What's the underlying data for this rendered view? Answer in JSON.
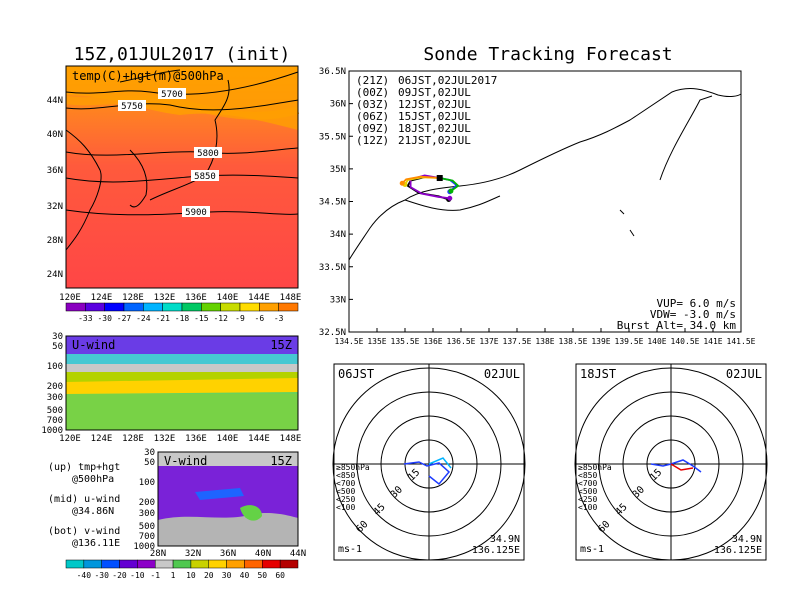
{
  "left_title": "15Z,01JUL2017 (init)",
  "right_title": "Sonde Tracking Forecast",
  "top_map": {
    "label": "temp(C)+hgt(m)@500hPa",
    "x_ticks": [
      "120E",
      "124E",
      "128E",
      "132E",
      "136E",
      "140E",
      "144E",
      "148E"
    ],
    "y_ticks": [
      "44N",
      "40N",
      "36N",
      "32N",
      "28N",
      "24N"
    ],
    "contour_labels": [
      "5700",
      "5750",
      "5800",
      "5850",
      "5900"
    ],
    "colorbar_ticks": [
      "-33",
      "-30",
      "-27",
      "-24",
      "-21",
      "-18",
      "-15",
      "-12",
      "-9",
      "-6",
      "-3"
    ],
    "colorbar_colors": [
      "#8a00c0",
      "#5a00e0",
      "#0000ff",
      "#0064ff",
      "#00b4ff",
      "#00dcc8",
      "#00c864",
      "#64d200",
      "#c8dc00",
      "#ffdc00",
      "#ffa000",
      "#ff7800"
    ]
  },
  "uwind_panel": {
    "label": "U-wind",
    "time": "15Z",
    "y_ticks": [
      "30",
      "50",
      "100",
      "200",
      "300",
      "500",
      "700",
      "1000"
    ],
    "x_ticks": [
      "120E",
      "124E",
      "128E",
      "132E",
      "136E",
      "140E",
      "144E",
      "148E"
    ]
  },
  "vwind_panel": {
    "label": "V-wind",
    "time": "15Z",
    "y_ticks": [
      "30",
      "50",
      "100",
      "200",
      "300",
      "500",
      "700",
      "1000"
    ],
    "x_ticks": [
      "28N",
      "32N",
      "36N",
      "40N",
      "44N"
    ]
  },
  "notes": [
    "(up) tmp+hgt",
    "@500hPa",
    "(mid) u-wind",
    "@34.86N",
    "(bot) v-wind",
    "@136.11E"
  ],
  "wind_colorbar": {
    "ticks": [
      "-40",
      "-30",
      "-20",
      "-10",
      "-1",
      "1",
      "10",
      "20",
      "30",
      "40",
      "50",
      "60"
    ],
    "colors": [
      "#00c8c8",
      "#0096dc",
      "#0050ff",
      "#6400d2",
      "#8c00c8",
      "#c8c8c8",
      "#50c850",
      "#c8d200",
      "#ffd200",
      "#ffa000",
      "#ff6400",
      "#e60000",
      "#b40000"
    ]
  },
  "track_map": {
    "x_ticks": [
      "134.5E",
      "135E",
      "135.5E",
      "136E",
      "136.5E",
      "137E",
      "137.5E",
      "138E",
      "138.5E",
      "139E",
      "139.5E",
      "140E",
      "140.5E",
      "141E",
      "141.5E"
    ],
    "y_ticks": [
      "36.5N",
      "36N",
      "35.5N",
      "35N",
      "34.5N",
      "34N",
      "33.5N",
      "33N",
      "32.5N"
    ],
    "legend": [
      {
        "code": "(21Z)",
        "text": "06JST,02JUL2017",
        "color": "#000000"
      },
      {
        "code": "(00Z)",
        "text": "09JST,02JUL",
        "color": "#8c00c8"
      },
      {
        "code": "(03Z)",
        "text": "12JST,02JUL",
        "color": "#1e3cff"
      },
      {
        "code": "(06Z)",
        "text": "15JST,02JUL",
        "color": "#00b400"
      },
      {
        "code": "(09Z)",
        "text": "18JST,02JUL",
        "color": "#e6d200"
      },
      {
        "code": "(12Z)",
        "text": "21JST,02JUL",
        "color": "#ff8c00"
      }
    ],
    "params": [
      "VUP= 6.0 m/s",
      "VDW= -3.0 m/s",
      "Burst Alt= 34.0 km"
    ]
  },
  "hodographs": [
    {
      "time": "06JST",
      "date": "02JUL",
      "pos": "34.9N",
      "lon": "136.125E"
    },
    {
      "time": "18JST",
      "date": "02JUL",
      "pos": "34.9N",
      "lon": "136.125E"
    }
  ],
  "hodo_common": {
    "ring_labels": [
      "15",
      "30",
      "45",
      "60"
    ],
    "unit": "ms-1",
    "level_legend": [
      {
        "text": "≥850hPa",
        "color": "#e60000"
      },
      {
        "text": "<850",
        "color": "#ff8c00"
      },
      {
        "text": "<700",
        "color": "#e6d200"
      },
      {
        "text": "<500",
        "color": "#00b400"
      },
      {
        "text": "<250",
        "color": "#00b4ff"
      },
      {
        "text": "<100",
        "color": "#1e3cff"
      }
    ]
  },
  "chart_data": {
    "type": "line",
    "title": "Sonde Tracking Forecast",
    "xlim": [
      134.5,
      141.5
    ],
    "ylim": [
      32.5,
      36.5
    ],
    "series": [
      {
        "name": "(21Z) 06JST,02JUL2017",
        "x": [
          136.12,
          135.88,
          135.6,
          135.55,
          135.75,
          136.1,
          136.28
        ],
        "y": [
          34.86,
          34.88,
          34.82,
          34.74,
          34.63,
          34.58,
          34.53
        ]
      },
      {
        "name": "(00Z) 09JST,02JUL",
        "x": [
          136.12,
          135.85,
          135.6,
          135.6,
          135.8,
          136.1,
          136.3
        ],
        "y": [
          34.86,
          34.9,
          34.84,
          34.72,
          34.62,
          34.57,
          34.55
        ]
      },
      {
        "name": "(03Z) 12JST,02JUL",
        "x": [
          136.12,
          136.3,
          136.42,
          136.3
        ],
        "y": [
          34.86,
          34.83,
          34.75,
          34.65
        ]
      },
      {
        "name": "(06Z) 15JST,02JUL",
        "x": [
          136.12,
          136.35,
          136.45,
          136.32
        ],
        "y": [
          34.86,
          34.82,
          34.74,
          34.66
        ]
      },
      {
        "name": "(09Z) 18JST,02JUL",
        "x": [
          136.12,
          135.8,
          135.55,
          135.5
        ],
        "y": [
          34.86,
          34.87,
          34.83,
          34.76
        ]
      },
      {
        "name": "(12Z) 21JST,02JUL",
        "x": [
          136.12,
          135.78,
          135.52,
          135.45
        ],
        "y": [
          34.86,
          34.88,
          34.84,
          34.78
        ]
      }
    ],
    "launch_point": [
      136.12,
      34.86
    ]
  }
}
